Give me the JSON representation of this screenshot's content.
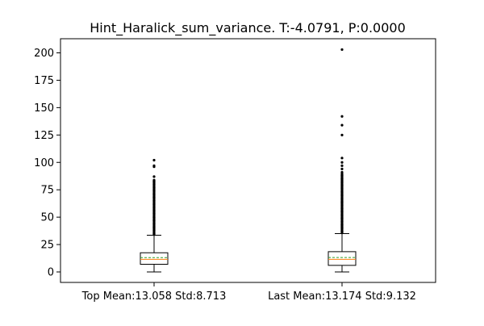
{
  "chart_data": {
    "type": "box",
    "title": "Hint_Haralick_sum_variance. T:-4.0791, P:0.0000",
    "xlabel": "",
    "ylabel": "",
    "ylim": [
      -10,
      213
    ],
    "yticks": [
      0,
      25,
      50,
      75,
      100,
      125,
      150,
      175,
      200
    ],
    "ytick_labels": [
      "0",
      "25",
      "50",
      "75",
      "100",
      "125",
      "150",
      "175",
      "200"
    ],
    "grid": false,
    "categories": [
      "Top Mean:13.058 Std:8.713",
      "Last Mean:13.174 Std:9.132"
    ],
    "series": [
      {
        "label": "Top Mean:13.058 Std:8.713",
        "whisker_low": 0,
        "q1": 7,
        "median": 11.5,
        "mean": 13.058,
        "q3": 17.5,
        "whisker_high": 33.5,
        "outliers": [
          35,
          38,
          41,
          44,
          47,
          50,
          53,
          56,
          59,
          62,
          65,
          68,
          71,
          74,
          77,
          80,
          83,
          87,
          96,
          97,
          102
        ]
      },
      {
        "label": "Last Mean:13.174 Std:9.132",
        "whisker_low": 0,
        "q1": 6,
        "median": 11.5,
        "mean": 13.174,
        "q3": 18.5,
        "whisker_high": 35,
        "outliers": [
          37,
          40,
          43,
          46,
          49,
          52,
          55,
          58,
          61,
          64,
          67,
          70,
          73,
          76,
          79,
          82,
          85,
          88,
          91,
          94,
          97,
          100,
          104,
          125,
          134,
          142,
          203
        ]
      }
    ],
    "colors": {
      "box_edge": "#000000",
      "median": "#ff7f0e",
      "mean": "#2ca02c",
      "outlier": "#000000"
    }
  }
}
